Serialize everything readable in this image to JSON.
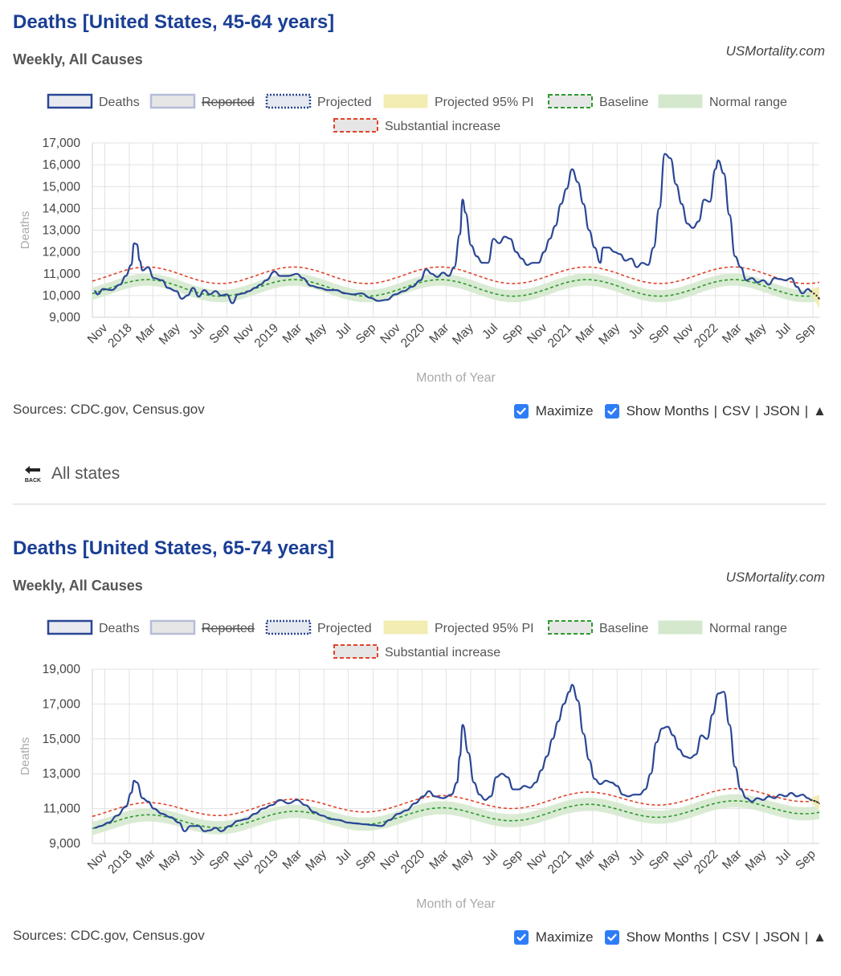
{
  "charts": [
    {
      "title": "Deaths [United States, 45-64 years]",
      "subtitle": "Weekly, All Causes",
      "site": "USMortality.com",
      "sources": "Sources: CDC.gov, Census.gov",
      "controls": {
        "maximize": "Maximize",
        "show_months": "Show Months",
        "csv": "CSV",
        "json": "JSON",
        "up": "▲",
        "sep": "|"
      }
    },
    {
      "title": "Deaths [United States, 65-74 years]",
      "subtitle": "Weekly, All Causes",
      "site": "USMortality.com",
      "sources": "Sources: CDC.gov, Census.gov",
      "controls": {
        "maximize": "Maximize",
        "show_months": "Show Months",
        "csv": "CSV",
        "json": "JSON",
        "up": "▲",
        "sep": "|"
      }
    }
  ],
  "back": {
    "label": "All states",
    "icon_text": "BACK",
    "icon": "back-arrow-icon"
  },
  "colors": {
    "deaths": "#2a4795",
    "baseline": "#2e9a2e",
    "normal_range": "#d3e8cd",
    "substantial": "#e0442a",
    "projected_pi": "#f3ecb3",
    "reported": "#e6e6e6",
    "grid": "#e2e2e2"
  },
  "chart_data": [
    {
      "type": "line",
      "title": "",
      "xlabel": "Month of Year",
      "ylabel": "Deaths",
      "ylim": [
        9000,
        17000
      ],
      "yticks": [
        "9,000",
        "10,000",
        "11,000",
        "12,000",
        "13,000",
        "14,000",
        "15,000",
        "16,000",
        "17,000"
      ],
      "yticks_values": [
        9000,
        10000,
        11000,
        12000,
        13000,
        14000,
        15000,
        16000,
        17000
      ],
      "x_tick_labels": [
        "Nov",
        "2018",
        "Mar",
        "May",
        "Jul",
        "Sep",
        "Nov",
        "2019",
        "Mar",
        "May",
        "Jul",
        "Sep",
        "Nov",
        "2020",
        "Mar",
        "May",
        "Jul",
        "Sep",
        "Nov",
        "2021",
        "Mar",
        "May",
        "Jul",
        "Sep",
        "Nov",
        "2022",
        "Mar",
        "May",
        "Jul",
        "Sep"
      ],
      "x_range": [
        "2017-10-01",
        "2022-09-17"
      ],
      "grid": true,
      "legend_position": "top",
      "legend": [
        "Deaths",
        "Reported",
        "Projected",
        "Projected 95% PI",
        "Baseline",
        "Normal range",
        "Substantial increase"
      ],
      "seasonal": {
        "baseline_mean": 10350,
        "baseline_amplitude": 380,
        "baseline_trend": 0,
        "band_halfwidth": 280,
        "substantial_offset": 580,
        "peak_month": 1.5
      },
      "deaths": [
        [
          "2017-10-07",
          10200
        ],
        [
          "2017-10-14",
          10050
        ],
        [
          "2017-10-28",
          10300
        ],
        [
          "2017-11-18",
          10250
        ],
        [
          "2017-12-09",
          10500
        ],
        [
          "2017-12-23",
          10900
        ],
        [
          "2018-01-06",
          11400
        ],
        [
          "2018-01-13",
          12400
        ],
        [
          "2018-01-20",
          12350
        ],
        [
          "2018-01-27",
          11600
        ],
        [
          "2018-02-03",
          11150
        ],
        [
          "2018-02-17",
          11300
        ],
        [
          "2018-03-03",
          10800
        ],
        [
          "2018-03-24",
          10700
        ],
        [
          "2018-04-07",
          10350
        ],
        [
          "2018-04-28",
          10200
        ],
        [
          "2018-05-12",
          9850
        ],
        [
          "2018-05-26",
          10000
        ],
        [
          "2018-06-09",
          10350
        ],
        [
          "2018-06-23",
          9950
        ],
        [
          "2018-07-07",
          10250
        ],
        [
          "2018-07-21",
          10050
        ],
        [
          "2018-08-04",
          10200
        ],
        [
          "2018-08-18",
          10000
        ],
        [
          "2018-09-01",
          10050
        ],
        [
          "2018-09-15",
          9650
        ],
        [
          "2018-09-29",
          10050
        ],
        [
          "2018-10-13",
          10100
        ],
        [
          "2018-10-27",
          10200
        ],
        [
          "2018-11-10",
          10350
        ],
        [
          "2018-11-24",
          10500
        ],
        [
          "2018-12-08",
          10700
        ],
        [
          "2018-12-29",
          11100
        ],
        [
          "2019-01-12",
          10900
        ],
        [
          "2019-02-02",
          10900
        ],
        [
          "2019-02-23",
          11000
        ],
        [
          "2019-03-09",
          10800
        ],
        [
          "2019-03-30",
          10450
        ],
        [
          "2019-04-20",
          10350
        ],
        [
          "2019-05-11",
          10250
        ],
        [
          "2019-06-01",
          10250
        ],
        [
          "2019-06-22",
          10100
        ],
        [
          "2019-07-13",
          10050
        ],
        [
          "2019-08-03",
          10100
        ],
        [
          "2019-08-24",
          9900
        ],
        [
          "2019-09-14",
          9750
        ],
        [
          "2019-10-05",
          9800
        ],
        [
          "2019-10-26",
          10050
        ],
        [
          "2019-11-16",
          10200
        ],
        [
          "2019-12-07",
          10400
        ],
        [
          "2019-12-28",
          10700
        ],
        [
          "2020-01-11",
          11200
        ],
        [
          "2020-01-25",
          11000
        ],
        [
          "2020-02-08",
          10850
        ],
        [
          "2020-02-22",
          11050
        ],
        [
          "2020-03-07",
          10900
        ],
        [
          "2020-03-21",
          11300
        ],
        [
          "2020-04-04",
          12800
        ],
        [
          "2020-04-11",
          14400
        ],
        [
          "2020-04-18",
          13800
        ],
        [
          "2020-05-02",
          12300
        ],
        [
          "2020-05-16",
          11800
        ],
        [
          "2020-05-30",
          11500
        ],
        [
          "2020-06-13",
          11500
        ],
        [
          "2020-06-27",
          12600
        ],
        [
          "2020-07-11",
          12400
        ],
        [
          "2020-07-25",
          12700
        ],
        [
          "2020-08-08",
          12600
        ],
        [
          "2020-08-22",
          12000
        ],
        [
          "2020-09-05",
          11700
        ],
        [
          "2020-09-19",
          11400
        ],
        [
          "2020-10-03",
          11500
        ],
        [
          "2020-10-17",
          11500
        ],
        [
          "2020-10-31",
          12000
        ],
        [
          "2020-11-14",
          12600
        ],
        [
          "2020-11-28",
          13200
        ],
        [
          "2020-12-12",
          14200
        ],
        [
          "2020-12-26",
          14900
        ],
        [
          "2021-01-09",
          15800
        ],
        [
          "2021-01-23",
          15200
        ],
        [
          "2021-02-06",
          14200
        ],
        [
          "2021-02-20",
          13000
        ],
        [
          "2021-03-06",
          12200
        ],
        [
          "2021-03-20",
          11500
        ],
        [
          "2021-03-27",
          12200
        ],
        [
          "2021-04-10",
          12200
        ],
        [
          "2021-04-24",
          12000
        ],
        [
          "2021-05-08",
          11900
        ],
        [
          "2021-05-22",
          11600
        ],
        [
          "2021-06-05",
          11700
        ],
        [
          "2021-06-19",
          11300
        ],
        [
          "2021-07-03",
          11500
        ],
        [
          "2021-07-17",
          11400
        ],
        [
          "2021-07-31",
          12200
        ],
        [
          "2021-08-14",
          14000
        ],
        [
          "2021-08-28",
          16500
        ],
        [
          "2021-09-11",
          16300
        ],
        [
          "2021-09-25",
          15100
        ],
        [
          "2021-10-09",
          14200
        ],
        [
          "2021-10-23",
          13300
        ],
        [
          "2021-11-06",
          13100
        ],
        [
          "2021-11-20",
          13400
        ],
        [
          "2021-12-04",
          14400
        ],
        [
          "2021-12-18",
          14300
        ],
        [
          "2022-01-01",
          15800
        ],
        [
          "2022-01-08",
          16200
        ],
        [
          "2022-01-22",
          15600
        ],
        [
          "2022-02-05",
          13700
        ],
        [
          "2022-02-19",
          11800
        ],
        [
          "2022-03-05",
          11300
        ],
        [
          "2022-03-19",
          10700
        ],
        [
          "2022-04-02",
          10800
        ],
        [
          "2022-04-16",
          10600
        ],
        [
          "2022-04-30",
          10700
        ],
        [
          "2022-05-14",
          10500
        ],
        [
          "2022-05-28",
          10800
        ],
        [
          "2022-06-11",
          10750
        ],
        [
          "2022-06-25",
          10700
        ],
        [
          "2022-07-09",
          10800
        ],
        [
          "2022-07-23",
          10400
        ],
        [
          "2022-08-06",
          10100
        ],
        [
          "2022-08-20",
          10300
        ],
        [
          "2022-08-27",
          10200
        ]
      ],
      "projected": [
        [
          "2022-08-27",
          10200
        ],
        [
          "2022-09-03",
          10100
        ],
        [
          "2022-09-10",
          10000
        ],
        [
          "2022-09-17",
          9850
        ]
      ],
      "projected_pi": [
        [
          "2022-08-27",
          10100,
          10300
        ],
        [
          "2022-09-17",
          9400,
          10400
        ]
      ]
    },
    {
      "type": "line",
      "title": "",
      "xlabel": "Month of Year",
      "ylabel": "Deaths",
      "ylim": [
        9000,
        19000
      ],
      "yticks": [
        "9,000",
        "11,000",
        "13,000",
        "15,000",
        "17,000",
        "19,000"
      ],
      "yticks_values": [
        9000,
        11000,
        13000,
        15000,
        17000,
        19000
      ],
      "x_tick_labels": [
        "Nov",
        "2018",
        "Mar",
        "May",
        "Jul",
        "Sep",
        "Nov",
        "2019",
        "Mar",
        "May",
        "Jul",
        "Sep",
        "Nov",
        "2020",
        "Mar",
        "May",
        "Jul",
        "Sep",
        "Nov",
        "2021",
        "Mar",
        "May",
        "Jul",
        "Sep",
        "Nov",
        "2022",
        "Mar",
        "May",
        "Jul",
        "Sep"
      ],
      "x_range": [
        "2017-10-01",
        "2022-09-17"
      ],
      "grid": true,
      "legend_position": "top",
      "legend": [
        "Deaths",
        "Reported",
        "Projected",
        "Projected 95% PI",
        "Baseline",
        "Normal range",
        "Substantial increase"
      ],
      "seasonal": {
        "baseline_mean": 10150,
        "baseline_amplitude": 420,
        "baseline_trend": 200,
        "band_halfwidth": 380,
        "substantial_offset": 700,
        "peak_month": 1.5
      },
      "deaths": [
        [
          "2017-10-07",
          9900
        ],
        [
          "2017-10-21",
          10000
        ],
        [
          "2017-11-11",
          10200
        ],
        [
          "2017-12-02",
          10600
        ],
        [
          "2017-12-23",
          11100
        ],
        [
          "2018-01-06",
          11900
        ],
        [
          "2018-01-13",
          12600
        ],
        [
          "2018-01-20",
          12500
        ],
        [
          "2018-02-03",
          11600
        ],
        [
          "2018-02-17",
          11400
        ],
        [
          "2018-03-03",
          11000
        ],
        [
          "2018-03-24",
          10700
        ],
        [
          "2018-04-14",
          10500
        ],
        [
          "2018-05-05",
          10200
        ],
        [
          "2018-05-19",
          9700
        ],
        [
          "2018-06-02",
          10000
        ],
        [
          "2018-06-23",
          10000
        ],
        [
          "2018-07-07",
          9700
        ],
        [
          "2018-07-21",
          9750
        ],
        [
          "2018-08-04",
          9900
        ],
        [
          "2018-08-18",
          9700
        ],
        [
          "2018-09-08",
          10000
        ],
        [
          "2018-09-29",
          10300
        ],
        [
          "2018-10-20",
          10400
        ],
        [
          "2018-11-10",
          10700
        ],
        [
          "2018-12-01",
          11000
        ],
        [
          "2018-12-22",
          11200
        ],
        [
          "2019-01-12",
          11500
        ],
        [
          "2019-02-02",
          11300
        ],
        [
          "2019-02-23",
          11500
        ],
        [
          "2019-03-16",
          11200
        ],
        [
          "2019-04-06",
          10800
        ],
        [
          "2019-04-27",
          10600
        ],
        [
          "2019-05-18",
          10400
        ],
        [
          "2019-06-08",
          10350
        ],
        [
          "2019-06-29",
          10200
        ],
        [
          "2019-07-20",
          10150
        ],
        [
          "2019-08-10",
          10100
        ],
        [
          "2019-08-31",
          10050
        ],
        [
          "2019-09-21",
          10000
        ],
        [
          "2019-10-12",
          10350
        ],
        [
          "2019-11-02",
          10700
        ],
        [
          "2019-11-23",
          10900
        ],
        [
          "2019-12-14",
          11300
        ],
        [
          "2020-01-04",
          11700
        ],
        [
          "2020-01-18",
          12000
        ],
        [
          "2020-02-01",
          11700
        ],
        [
          "2020-02-22",
          11600
        ],
        [
          "2020-03-14",
          11800
        ],
        [
          "2020-03-28",
          12500
        ],
        [
          "2020-04-04",
          14000
        ],
        [
          "2020-04-11",
          15800
        ],
        [
          "2020-04-25",
          14200
        ],
        [
          "2020-05-09",
          12500
        ],
        [
          "2020-05-23",
          11800
        ],
        [
          "2020-06-06",
          11500
        ],
        [
          "2020-06-20",
          11700
        ],
        [
          "2020-07-04",
          12800
        ],
        [
          "2020-07-18",
          13000
        ],
        [
          "2020-08-01",
          12800
        ],
        [
          "2020-08-15",
          12100
        ],
        [
          "2020-08-29",
          12100
        ],
        [
          "2020-09-12",
          12300
        ],
        [
          "2020-09-26",
          12200
        ],
        [
          "2020-10-10",
          12500
        ],
        [
          "2020-10-24",
          13200
        ],
        [
          "2020-11-07",
          14000
        ],
        [
          "2020-11-21",
          15000
        ],
        [
          "2020-12-05",
          16000
        ],
        [
          "2020-12-19",
          17000
        ],
        [
          "2021-01-02",
          17700
        ],
        [
          "2021-01-09",
          18100
        ],
        [
          "2021-01-23",
          17200
        ],
        [
          "2021-02-06",
          15300
        ],
        [
          "2021-02-20",
          13800
        ],
        [
          "2021-03-06",
          12700
        ],
        [
          "2021-03-20",
          12400
        ],
        [
          "2021-04-03",
          12600
        ],
        [
          "2021-04-17",
          12500
        ],
        [
          "2021-05-01",
          12300
        ],
        [
          "2021-05-15",
          11800
        ],
        [
          "2021-05-29",
          11700
        ],
        [
          "2021-06-12",
          11800
        ],
        [
          "2021-06-26",
          11800
        ],
        [
          "2021-07-10",
          12100
        ],
        [
          "2021-07-24",
          13000
        ],
        [
          "2021-08-07",
          14800
        ],
        [
          "2021-08-21",
          15600
        ],
        [
          "2021-09-04",
          15700
        ],
        [
          "2021-09-18",
          15200
        ],
        [
          "2021-10-02",
          14400
        ],
        [
          "2021-10-16",
          14000
        ],
        [
          "2021-10-30",
          13900
        ],
        [
          "2021-11-13",
          14100
        ],
        [
          "2021-11-27",
          15200
        ],
        [
          "2021-12-11",
          15000
        ],
        [
          "2021-12-25",
          16400
        ],
        [
          "2022-01-08",
          17600
        ],
        [
          "2022-01-22",
          17700
        ],
        [
          "2022-02-05",
          15800
        ],
        [
          "2022-02-19",
          13400
        ],
        [
          "2022-03-05",
          12100
        ],
        [
          "2022-03-19",
          11600
        ],
        [
          "2022-04-02",
          11400
        ],
        [
          "2022-04-16",
          11600
        ],
        [
          "2022-04-30",
          11500
        ],
        [
          "2022-05-14",
          11700
        ],
        [
          "2022-05-28",
          11600
        ],
        [
          "2022-06-11",
          11800
        ],
        [
          "2022-06-25",
          11700
        ],
        [
          "2022-07-09",
          11900
        ],
        [
          "2022-07-23",
          11700
        ],
        [
          "2022-08-06",
          11800
        ],
        [
          "2022-08-20",
          11600
        ],
        [
          "2022-08-27",
          11500
        ]
      ],
      "projected": [
        [
          "2022-08-27",
          11500
        ],
        [
          "2022-09-03",
          11450
        ],
        [
          "2022-09-10",
          11400
        ],
        [
          "2022-09-17",
          11300
        ]
      ],
      "projected_pi": [
        [
          "2022-08-27",
          11400,
          11600
        ],
        [
          "2022-09-17",
          10900,
          11800
        ]
      ]
    }
  ]
}
